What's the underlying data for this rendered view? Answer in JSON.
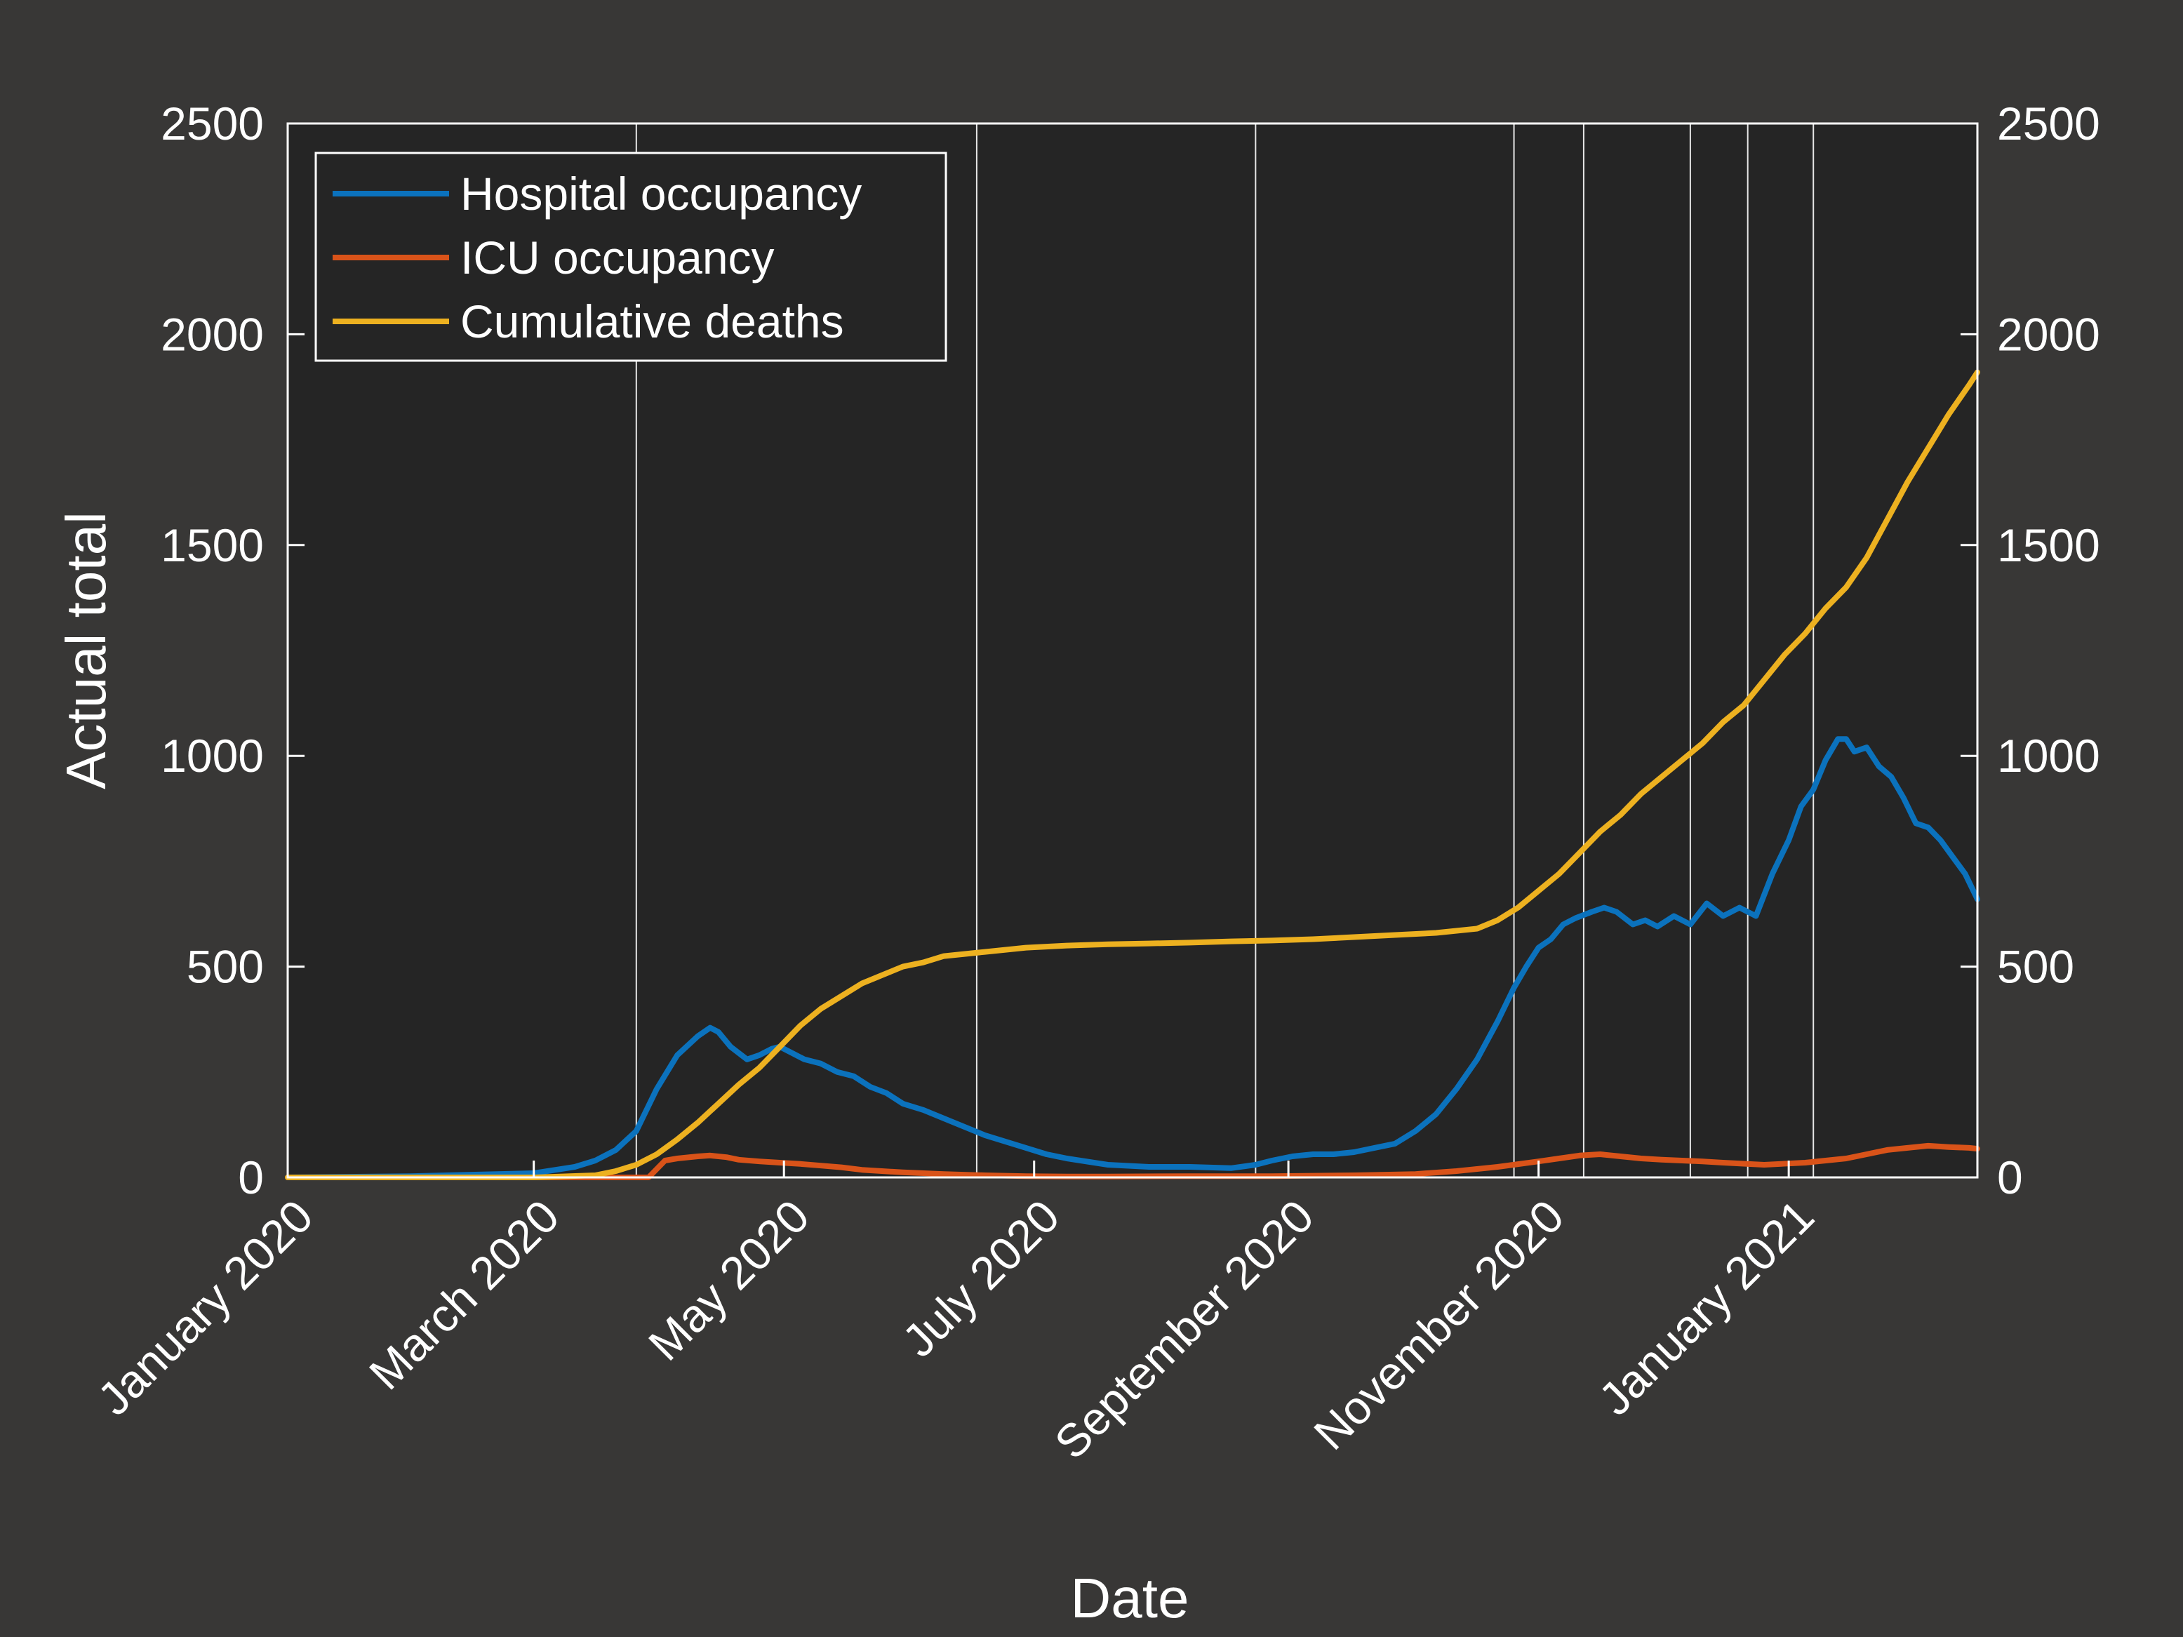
{
  "chart_data": {
    "type": "line",
    "title": "",
    "xlabel": "Date",
    "ylabel": "Actual total",
    "ylim": [
      0,
      2500
    ],
    "y_ticks": [
      0,
      500,
      1000,
      1500,
      2000,
      2500
    ],
    "y_tick_labels": [
      "0",
      "500",
      "1000",
      "1500",
      "2000",
      "2500"
    ],
    "x_range_days": [
      0,
      412
    ],
    "x_ticks_days": [
      0,
      60,
      121,
      182,
      244,
      305,
      366
    ],
    "x_tick_labels": [
      "January 2020",
      "March 2020",
      "May 2020",
      "July 2020",
      "September 2020",
      "November 2020",
      "January 2021"
    ],
    "vertical_markers_days": [
      85,
      168,
      236,
      299,
      316,
      342,
      356,
      372
    ],
    "legend_position": "top-left",
    "grid": false,
    "series": [
      {
        "name": "Hospital occupancy",
        "color": "#0b72bd",
        "x": [
          0,
          30,
          60,
          70,
          75,
          80,
          85,
          90,
          95,
          100,
          103,
          105,
          108,
          110,
          112,
          115,
          118,
          120,
          123,
          126,
          130,
          134,
          138,
          142,
          146,
          150,
          155,
          160,
          165,
          170,
          175,
          180,
          185,
          190,
          200,
          210,
          220,
          230,
          236,
          240,
          245,
          250,
          255,
          260,
          265,
          270,
          275,
          280,
          285,
          290,
          295,
          299,
          302,
          305,
          308,
          311,
          314,
          318,
          321,
          324,
          328,
          331,
          334,
          338,
          342,
          346,
          350,
          354,
          358,
          362,
          366,
          369,
          372,
          375,
          378,
          380,
          382,
          385,
          388,
          391,
          394,
          397,
          400,
          403,
          406,
          409,
          412
        ],
        "values": [
          0,
          3,
          10,
          25,
          40,
          65,
          110,
          210,
          290,
          335,
          355,
          345,
          310,
          295,
          280,
          290,
          305,
          310,
          295,
          280,
          270,
          250,
          240,
          215,
          200,
          175,
          160,
          140,
          120,
          100,
          85,
          70,
          55,
          45,
          30,
          25,
          25,
          22,
          30,
          40,
          50,
          55,
          55,
          60,
          70,
          80,
          110,
          150,
          210,
          280,
          370,
          450,
          500,
          545,
          565,
          600,
          615,
          630,
          640,
          630,
          600,
          610,
          595,
          620,
          600,
          650,
          620,
          640,
          620,
          720,
          800,
          880,
          920,
          990,
          1040,
          1040,
          1010,
          1020,
          975,
          950,
          900,
          840,
          830,
          800,
          760,
          720,
          660
        ]
      },
      {
        "name": "ICU occupancy",
        "color": "#d95319",
        "x": [
          0,
          88,
          92,
          95,
          100,
          103,
          107,
          110,
          115,
          120,
          125,
          130,
          135,
          140,
          150,
          160,
          170,
          180,
          190,
          200,
          220,
          240,
          260,
          275,
          285,
          295,
          305,
          310,
          315,
          320,
          325,
          330,
          335,
          340,
          345,
          350,
          360,
          370,
          375,
          380,
          385,
          390,
          395,
          400,
          405,
          410,
          412
        ],
        "values": [
          0,
          0,
          40,
          45,
          50,
          52,
          48,
          42,
          38,
          35,
          32,
          28,
          24,
          18,
          12,
          8,
          5,
          3,
          2,
          2,
          3,
          3,
          5,
          8,
          15,
          25,
          38,
          45,
          52,
          55,
          50,
          45,
          42,
          40,
          38,
          35,
          30,
          35,
          40,
          45,
          55,
          65,
          70,
          75,
          72,
          70,
          68
        ]
      },
      {
        "name": "Cumulative deaths",
        "color": "#edb120",
        "x": [
          0,
          60,
          75,
          80,
          85,
          90,
          95,
          100,
          105,
          110,
          115,
          120,
          125,
          130,
          135,
          140,
          145,
          150,
          155,
          160,
          170,
          180,
          190,
          200,
          210,
          220,
          230,
          240,
          250,
          260,
          270,
          280,
          290,
          295,
          300,
          305,
          310,
          315,
          320,
          325,
          330,
          335,
          340,
          345,
          350,
          355,
          360,
          365,
          370,
          375,
          380,
          385,
          390,
          395,
          400,
          405,
          410,
          412
        ],
        "values": [
          0,
          0,
          5,
          15,
          30,
          55,
          90,
          130,
          175,
          220,
          260,
          310,
          360,
          400,
          430,
          460,
          480,
          500,
          510,
          525,
          535,
          545,
          550,
          553,
          555,
          557,
          560,
          562,
          565,
          570,
          575,
          580,
          590,
          610,
          640,
          680,
          720,
          770,
          820,
          860,
          910,
          950,
          990,
          1030,
          1080,
          1120,
          1180,
          1240,
          1290,
          1350,
          1400,
          1470,
          1560,
          1650,
          1730,
          1810,
          1880,
          1910
        ]
      }
    ]
  }
}
